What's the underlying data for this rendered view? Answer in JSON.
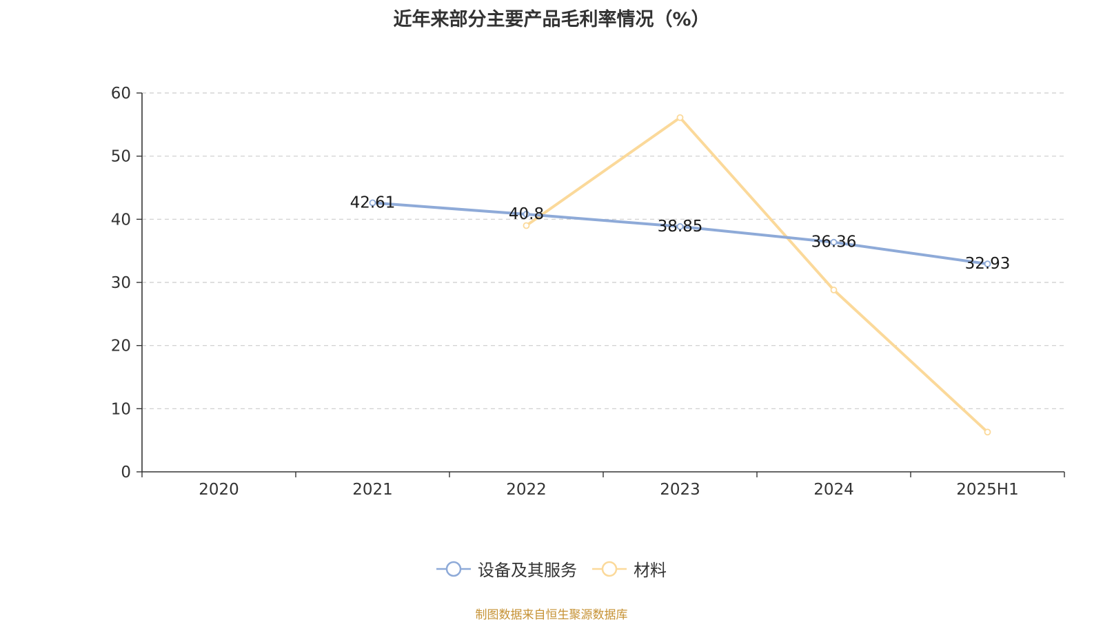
{
  "chart_data": {
    "type": "line",
    "title": "近年来部分主要产品毛利率情况（%）",
    "categories": [
      "2020",
      "2021",
      "2022",
      "2023",
      "2024",
      "2025H1"
    ],
    "ylim": [
      0,
      60
    ],
    "yticks": [
      0,
      10,
      20,
      30,
      40,
      50,
      60
    ],
    "grid": true,
    "legend_position": "bottom",
    "series": [
      {
        "name": "设备及其服务",
        "color": "#8eaad8",
        "show_labels": true,
        "values": [
          null,
          42.61,
          40.8,
          38.85,
          36.36,
          32.93
        ]
      },
      {
        "name": "材料",
        "color": "#fbd99a",
        "show_labels": false,
        "values": [
          null,
          null,
          39.0,
          56.1,
          28.8,
          6.3
        ]
      }
    ]
  },
  "source_note": "制图数据来自恒生聚源数据库"
}
